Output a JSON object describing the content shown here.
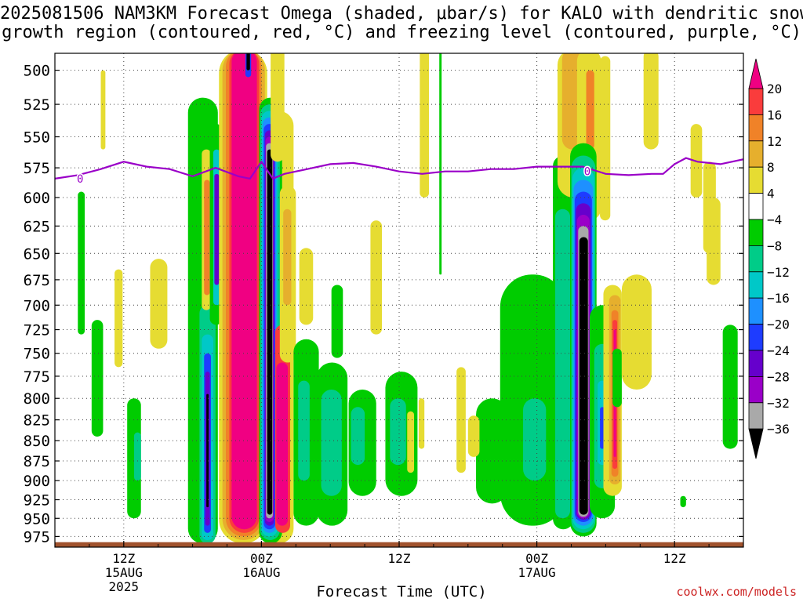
{
  "chart_data": {
    "type": "heatmap",
    "title_line1": "2025081506 NAM3KM Forecast Omega (shaded, μbar/s) for KALO with dendritic snow",
    "title_line2": "growth region (contoured, red, °C) and freezing level (contoured, purple, °C)",
    "xlabel": "Forecast Time (UTC)",
    "ylabel": "",
    "y_ticks": [
      500,
      525,
      550,
      575,
      600,
      625,
      650,
      675,
      700,
      725,
      750,
      775,
      800,
      825,
      850,
      875,
      900,
      925,
      950,
      975
    ],
    "y_scale": "log-pressure (inverted)",
    "ylim": [
      488,
      990
    ],
    "x_ticks": [
      {
        "hours": 6,
        "line1": "12Z",
        "line2": "15AUG",
        "line3": "2025"
      },
      {
        "hours": 18,
        "line1": "00Z",
        "line2": "16AUG",
        "line3": ""
      },
      {
        "hours": 30,
        "line1": "12Z",
        "line2": "",
        "line3": ""
      },
      {
        "hours": 42,
        "line1": "00Z",
        "line2": "17AUG",
        "line3": ""
      },
      {
        "hours": 54,
        "line1": "12Z",
        "line2": "",
        "line3": ""
      }
    ],
    "x_axis_note": "forecast hours since 2025081506",
    "xlim": [
      0,
      60
    ],
    "grid": true,
    "colorbar_bounds": [
      -36,
      -32,
      -28,
      -24,
      -20,
      -16,
      -12,
      -8,
      -4,
      4,
      8,
      12,
      16,
      20
    ],
    "colorbar_labels": [
      "20",
      "16",
      "12",
      "8",
      "4",
      "−4",
      "−8",
      "−12",
      "−16",
      "−20",
      "−24",
      "−28",
      "−32",
      "−36"
    ],
    "colorbar_colors": [
      "#000000",
      "#a9a9a9",
      "#9a00c8",
      "#6600cc",
      "#1e3cff",
      "#1e90ff",
      "#00c8c8",
      "#00cc88",
      "#00cc00",
      "#ffffff",
      "#e6dc32",
      "#e6af2d",
      "#f08228",
      "#fa3c3c",
      "#f00082"
    ],
    "freezing_level_label": "0",
    "freezing_level": [
      [
        0,
        584
      ],
      [
        2,
        581
      ],
      [
        4,
        576
      ],
      [
        6,
        570
      ],
      [
        8,
        574
      ],
      [
        10,
        576
      ],
      [
        12,
        582
      ],
      [
        14,
        575
      ],
      [
        16,
        582
      ],
      [
        17,
        584
      ],
      [
        18,
        570
      ],
      [
        19,
        584
      ],
      [
        20,
        580
      ],
      [
        22,
        576
      ],
      [
        24,
        572
      ],
      [
        26,
        571
      ],
      [
        28,
        574
      ],
      [
        30,
        578
      ],
      [
        32,
        580
      ],
      [
        34,
        578
      ],
      [
        36,
        578
      ],
      [
        38,
        576
      ],
      [
        40,
        576
      ],
      [
        42,
        574
      ],
      [
        44,
        574
      ],
      [
        46,
        574
      ],
      [
        48,
        580
      ],
      [
        50,
        581
      ],
      [
        52,
        580
      ],
      [
        53,
        580
      ],
      [
        54,
        572
      ],
      [
        55,
        567
      ],
      [
        56,
        570
      ],
      [
        58,
        572
      ],
      [
        60,
        568
      ]
    ],
    "terrain_top_hpa": 983
  },
  "page": {
    "title_line1": "2025081506 NAM3KM Forecast Omega (shaded, μbar/s) for KALO with dendritic snow",
    "title_line2": "growth region (contoured, red, °C) and freezing level (contoured, purple, °C)",
    "xlabel": "Forecast Time (UTC)",
    "credit": "coolwx.com/models"
  }
}
